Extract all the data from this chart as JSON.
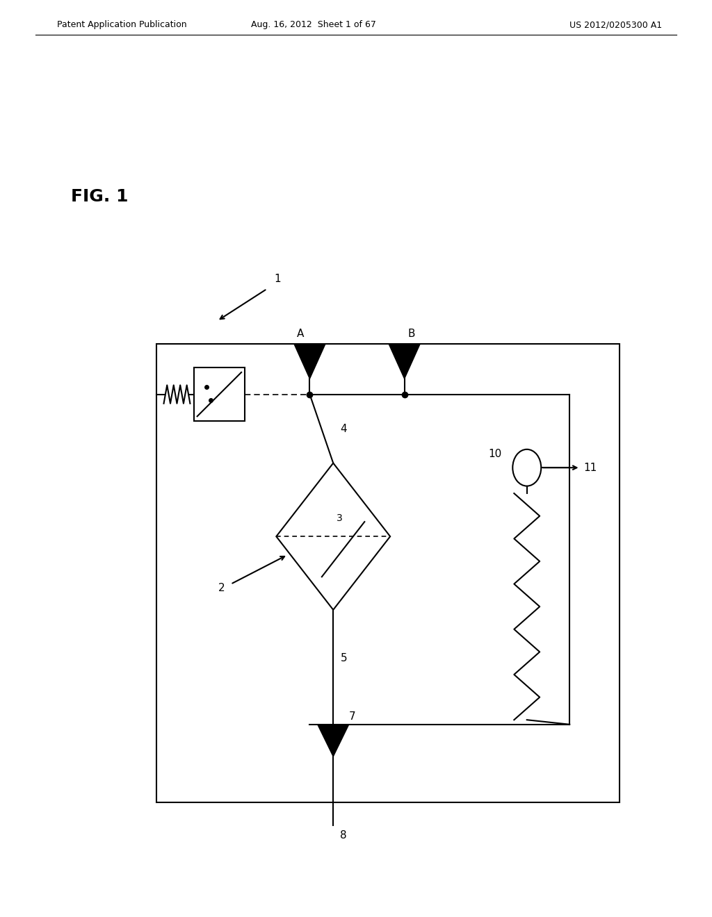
{
  "background_color": "#ffffff",
  "header_left": "Patent Application Publication",
  "header_center": "Aug. 16, 2012  Sheet 1 of 67",
  "header_right": "US 2012/0205300 A1",
  "fig_label": "FIG. 1",
  "label_1": "1",
  "label_2": "2",
  "label_3": "3",
  "label_4": "4",
  "label_5": "5",
  "label_7": "7",
  "label_8": "8",
  "label_A": "A",
  "label_B": "B",
  "label_10": "10",
  "label_11": "11"
}
